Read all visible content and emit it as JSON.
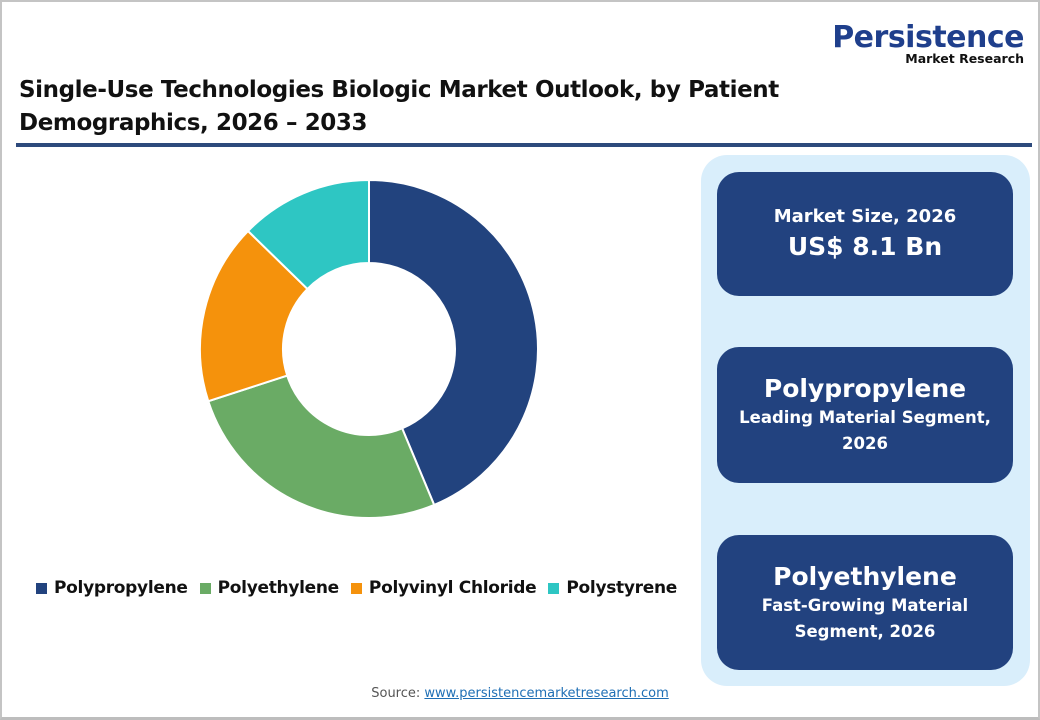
{
  "logo": {
    "name": "Persistence",
    "subtitle": "Market Research"
  },
  "header": {
    "title": "Single-Use Technologies Biologic Market Outlook, by Patient Demographics, 2026 – 2033"
  },
  "chart_data": {
    "type": "pie",
    "variant": "donut",
    "title": "Single-Use Technologies Biologic Market Outlook, by Patient Demographics, 2026 – 2033",
    "categories": [
      "Polypropylene",
      "Polyethylene",
      "Polyvinyl Chloride",
      "Polystyrene"
    ],
    "values": [
      43.7,
      26.3,
      17.3,
      12.7
    ],
    "unit": "% share (estimated from slice angles)",
    "colors": [
      "#22437e",
      "#6aab65",
      "#f5920c",
      "#2ec6c3"
    ],
    "start_angle": "12 o'clock, clockwise",
    "legend_position": "bottom",
    "data_labels": false
  },
  "legend": {
    "items": [
      {
        "label": "Polypropylene",
        "color": "#22437e"
      },
      {
        "label": "Polyethylene",
        "color": "#6aab65"
      },
      {
        "label": "Polyvinyl Chloride",
        "color": "#f5920c"
      },
      {
        "label": "Polystyrene",
        "color": "#2ec6c3"
      }
    ]
  },
  "panel": {
    "cards": [
      {
        "line1": "Market Size, 2026",
        "line2": "US$ 8.1 Bn"
      },
      {
        "line1": "Polypropylene",
        "line2": "Leading Material Segment, 2026"
      },
      {
        "line1": "Polyethylene",
        "line2": "Fast-Growing Material Segment, 2026"
      }
    ]
  },
  "footer": {
    "source_label": "Source:",
    "source_link": "www.persistencemarketresearch.com"
  },
  "colors": {
    "accent": "#22427f",
    "panel_bg": "#d9eefb",
    "divider": "#2d4a7c"
  }
}
